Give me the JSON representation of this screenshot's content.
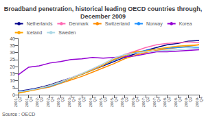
{
  "chart_data": {
    "type": "line",
    "title": "Broadband penetration, historical leading OECD countries through,\nDecember 2009",
    "annotations": [
      "Source : OECD"
    ],
    "categories": [
      "2001-\nQ2",
      "2001-\nQ4",
      "2002-\nQ2",
      "2002-\nQ4",
      "2003-\nQ2",
      "2003-\nQ4",
      "2004-\nQ2",
      "2004-\nQ4",
      "2005-\nQ2",
      "2005-\nQ4",
      "2006-\nQ2",
      "2006-\nQ4",
      "2007-\nQ2",
      "2007-\nQ4",
      "2008-\nQ2",
      "2008-\nQ4",
      "2009-\nQ2",
      "2009-\nQ4"
    ],
    "series": [
      {
        "name": "Netherlands",
        "color": "#00008B",
        "values": [
          2.5,
          3.5,
          5.0,
          7.0,
          9.5,
          12.0,
          14.5,
          17.5,
          20.5,
          23.5,
          26.5,
          29.0,
          31.5,
          33.5,
          35.5,
          36.5,
          38.0,
          38.5
        ]
      },
      {
        "name": "Denmark",
        "color": "#FF69B4",
        "values": [
          2.0,
          3.0,
          4.5,
          6.5,
          9.0,
          12.0,
          15.0,
          18.0,
          21.0,
          25.0,
          28.5,
          31.0,
          33.5,
          35.5,
          36.5,
          37.0,
          37.5,
          37.0
        ]
      },
      {
        "name": "Switzerland",
        "color": "#FF8C00",
        "values": [
          1.5,
          2.5,
          4.0,
          5.5,
          8.0,
          10.5,
          13.0,
          16.0,
          19.0,
          22.0,
          25.5,
          28.0,
          30.0,
          31.5,
          32.5,
          33.5,
          34.5,
          35.5
        ]
      },
      {
        "name": "Norway",
        "color": "#1E90FF",
        "values": [
          2.0,
          3.0,
          4.5,
          6.0,
          8.5,
          11.5,
          14.5,
          17.5,
          21.0,
          24.5,
          27.5,
          30.0,
          31.5,
          32.5,
          33.0,
          33.5,
          34.0,
          33.5
        ]
      },
      {
        "name": "Korea",
        "color": "#9400D3",
        "values": [
          14.0,
          19.5,
          20.5,
          22.5,
          23.5,
          25.0,
          25.5,
          26.5,
          26.0,
          26.5,
          27.0,
          27.5,
          29.0,
          30.5,
          30.5,
          31.0,
          31.5,
          32.0
        ]
      },
      {
        "name": "Iceland",
        "color": "#FFA500",
        "values": [
          1.0,
          2.5,
          4.5,
          6.5,
          9.0,
          11.5,
          14.5,
          17.5,
          21.0,
          25.0,
          27.5,
          30.5,
          31.0,
          32.5,
          33.5,
          34.5,
          35.0,
          35.5
        ]
      },
      {
        "name": "Sweden",
        "color": "#ADD8E6",
        "values": [
          2.0,
          3.0,
          4.5,
          6.5,
          9.0,
          12.0,
          15.0,
          18.5,
          22.0,
          26.0,
          28.5,
          29.5,
          30.5,
          31.0,
          31.5,
          32.0,
          32.5,
          33.0
        ]
      }
    ],
    "ylim": [
      0,
      40
    ],
    "yticks": [
      0,
      5,
      10,
      15,
      20,
      25,
      30,
      35,
      40
    ],
    "grid": false,
    "legend": "top"
  }
}
